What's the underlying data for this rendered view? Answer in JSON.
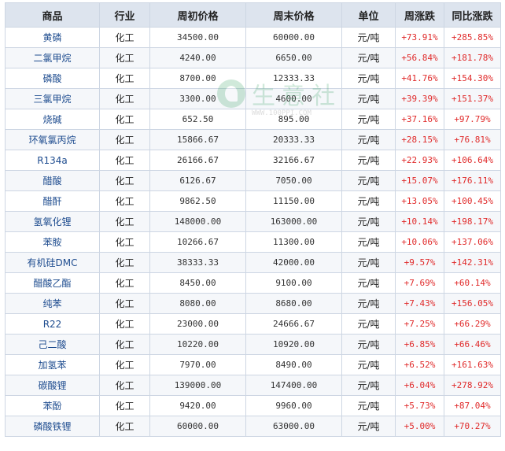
{
  "table": {
    "headers": [
      "商品",
      "行业",
      "周初价格",
      "周末价格",
      "单位",
      "周涨跌",
      "同比涨跌"
    ],
    "rows": [
      [
        "黄磷",
        "化工",
        "34500.00",
        "60000.00",
        "元/吨",
        "+73.91%",
        "+285.85%"
      ],
      [
        "二氯甲烷",
        "化工",
        "4240.00",
        "6650.00",
        "元/吨",
        "+56.84%",
        "+181.78%"
      ],
      [
        "磷酸",
        "化工",
        "8700.00",
        "12333.33",
        "元/吨",
        "+41.76%",
        "+154.30%"
      ],
      [
        "三氯甲烷",
        "化工",
        "3300.00",
        "4600.00",
        "元/吨",
        "+39.39%",
        "+151.37%"
      ],
      [
        "烧碱",
        "化工",
        "652.50",
        "895.00",
        "元/吨",
        "+37.16%",
        "+97.79%"
      ],
      [
        "环氧氯丙烷",
        "化工",
        "15866.67",
        "20333.33",
        "元/吨",
        "+28.15%",
        "+76.81%"
      ],
      [
        "R134a",
        "化工",
        "26166.67",
        "32166.67",
        "元/吨",
        "+22.93%",
        "+106.64%"
      ],
      [
        "醋酸",
        "化工",
        "6126.67",
        "7050.00",
        "元/吨",
        "+15.07%",
        "+176.11%"
      ],
      [
        "醋酐",
        "化工",
        "9862.50",
        "11150.00",
        "元/吨",
        "+13.05%",
        "+100.45%"
      ],
      [
        "氢氧化锂",
        "化工",
        "148000.00",
        "163000.00",
        "元/吨",
        "+10.14%",
        "+198.17%"
      ],
      [
        "苯胺",
        "化工",
        "10266.67",
        "11300.00",
        "元/吨",
        "+10.06%",
        "+137.06%"
      ],
      [
        "有机硅DMC",
        "化工",
        "38333.33",
        "42000.00",
        "元/吨",
        "+9.57%",
        "+142.31%"
      ],
      [
        "醋酸乙酯",
        "化工",
        "8450.00",
        "9100.00",
        "元/吨",
        "+7.69%",
        "+60.14%"
      ],
      [
        "纯苯",
        "化工",
        "8080.00",
        "8680.00",
        "元/吨",
        "+7.43%",
        "+156.05%"
      ],
      [
        "R22",
        "化工",
        "23000.00",
        "24666.67",
        "元/吨",
        "+7.25%",
        "+66.29%"
      ],
      [
        "己二酸",
        "化工",
        "10220.00",
        "10920.00",
        "元/吨",
        "+6.85%",
        "+66.46%"
      ],
      [
        "加氢苯",
        "化工",
        "7970.00",
        "8490.00",
        "元/吨",
        "+6.52%",
        "+161.63%"
      ],
      [
        "碳酸锂",
        "化工",
        "139000.00",
        "147400.00",
        "元/吨",
        "+6.04%",
        "+278.92%"
      ],
      [
        "苯酚",
        "化工",
        "9420.00",
        "9960.00",
        "元/吨",
        "+5.73%",
        "+87.04%"
      ],
      [
        "磷酸铁锂",
        "化工",
        "60000.00",
        "63000.00",
        "元/吨",
        "+5.00%",
        "+70.27%"
      ]
    ]
  },
  "watermark": {
    "text": "生意社",
    "url": "WWW.100PPI.COM",
    "color": "#2e9d5b",
    "icon": "leaf-logo-icon"
  },
  "colors": {
    "header_bg": "#dde4ee",
    "border": "#cdd6e3",
    "name_text": "#1e4c8f",
    "positive_change": "#e02a2a"
  }
}
